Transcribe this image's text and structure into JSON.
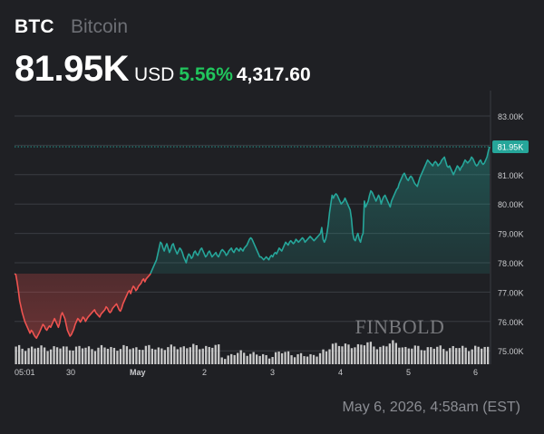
{
  "header": {
    "symbol": "BTC",
    "name": "Bitcoin",
    "price": "81.95K",
    "currency": "USD",
    "change_pct": "5.56%",
    "change_abs": "4,317.60"
  },
  "footer": {
    "timestamp": "May 6, 2026, 4:58am (EST)"
  },
  "watermark": "FINBOLD",
  "colors": {
    "background": "#1f2024",
    "up": "#26a69a",
    "down": "#ef5350",
    "positive_text": "#21c55d",
    "grid": "#3a3c42",
    "axis_text": "#c9cacd",
    "volume": "#d9d9d9"
  },
  "chart_data": {
    "type": "line",
    "x_tick_labels": [
      "05:01",
      "30",
      "May",
      "2",
      "3",
      "4",
      "5",
      "6"
    ],
    "y_tick_labels": [
      "83.00K",
      "82.00K",
      "81.00K",
      "80.00K",
      "79.00K",
      "78.00K",
      "77.00K",
      "76.00K",
      "75.00K"
    ],
    "y_ticks": [
      83000,
      82000,
      81000,
      80000,
      79000,
      78000,
      77000,
      76000,
      75000
    ],
    "ylim": [
      74700,
      83500
    ],
    "reference_level": 77630,
    "last_value": 81950,
    "last_label": "81.95K",
    "grid": true,
    "series": [
      {
        "values": [
          77630,
          77600,
          77350,
          77050,
          76700,
          76500,
          76300,
          76150,
          76000,
          75900,
          75800,
          75700,
          75600,
          75700,
          75650,
          75550,
          75480,
          75430,
          75520,
          75600,
          75700,
          75800,
          75900,
          75850,
          75750,
          75700,
          75780,
          75850,
          75800,
          75900,
          76000,
          76100,
          76000,
          75900,
          75800,
          75950,
          76200,
          76300,
          76200,
          76100,
          75900,
          75700,
          75600,
          75500,
          75550,
          75650,
          75750,
          75900,
          76000,
          76100,
          76050,
          75980,
          76050,
          76150,
          76100,
          76000,
          76080,
          76150,
          76200,
          76250,
          76300,
          76350,
          76400,
          76300,
          76250,
          76200,
          76150,
          76250,
          76300,
          76350,
          76400,
          76500,
          76450,
          76350,
          76300,
          76350,
          76450,
          76500,
          76550,
          76600,
          76500,
          76400,
          76350,
          76450,
          76600,
          76700,
          76800,
          76900,
          77000,
          77050,
          76950,
          77100,
          77200,
          77150,
          77050,
          77100,
          77200,
          77250,
          77300,
          77400,
          77450,
          77350,
          77450,
          77500,
          77550,
          77600,
          77700,
          77800,
          77900,
          78000,
          78100,
          78300,
          78500,
          78700,
          78650,
          78500,
          78400,
          78550,
          78650,
          78500,
          78350,
          78450,
          78600,
          78650,
          78500,
          78400,
          78300,
          78400,
          78500,
          78450,
          78350,
          78200,
          78100,
          78000,
          78200,
          78300,
          78250,
          78150,
          78200,
          78350,
          78400,
          78300,
          78250,
          78350,
          78450,
          78500,
          78400,
          78300,
          78200,
          78250,
          78350,
          78400,
          78300,
          78200,
          78250,
          78300,
          78350,
          78250,
          78200,
          78300,
          78400,
          78450,
          78400,
          78350,
          78250,
          78300,
          78400,
          78450,
          78500,
          78400,
          78350,
          78450,
          78500,
          78450,
          78400,
          78500,
          78450,
          78400,
          78500,
          78550,
          78600,
          78700,
          78800,
          78850,
          78800,
          78700,
          78600,
          78500,
          78400,
          78300,
          78200,
          78200,
          78150,
          78100,
          78150,
          78200,
          78150,
          78100,
          78200,
          78250,
          78200,
          78300,
          78350,
          78300,
          78400,
          78500,
          78450,
          78400,
          78500,
          78600,
          78700,
          78650,
          78600,
          78700,
          78750,
          78700,
          78650,
          78700,
          78800,
          78750,
          78700,
          78750,
          78800,
          78850,
          78800,
          78700,
          78750,
          78800,
          78850,
          78900,
          78850,
          78800,
          78750,
          78800,
          78850,
          78900,
          78950,
          79000,
          79200,
          78800,
          78700,
          78800,
          79000,
          79300,
          79700,
          80000,
          80300,
          80200,
          80300,
          80350,
          80300,
          80200,
          80100,
          80000,
          80050,
          80100,
          80200,
          80100,
          80000,
          79900,
          79800,
          79500,
          79000,
          78800,
          78750,
          78900,
          79000,
          78800,
          78700,
          78900,
          79000,
          80100,
          79900,
          80000,
          80100,
          80300,
          80450,
          80400,
          80300,
          80200,
          80100,
          80200,
          80300,
          80200,
          80000,
          80150,
          80250,
          80300,
          80200,
          80100,
          80000,
          79900,
          80100,
          80200,
          80300,
          80400,
          80500,
          80550,
          80700,
          80800,
          80900,
          81000,
          81050,
          80950,
          80850,
          80800,
          80900,
          80950,
          80900,
          80800,
          80700,
          80650,
          80600,
          80750,
          80900,
          81000,
          81100,
          81200,
          81300,
          81400,
          81500,
          81450,
          81400,
          81350,
          81300,
          81400,
          81450,
          81400,
          81300,
          81350,
          81400,
          81500,
          81550,
          81600,
          81450,
          81300,
          81250,
          81300,
          81200,
          81100,
          81000,
          81100,
          81200,
          81300,
          81250,
          81150,
          81250,
          81300,
          81400,
          81500,
          81450,
          81400,
          81450,
          81500,
          81600,
          81550,
          81450,
          81350,
          81300,
          81350,
          81450,
          81500,
          81400,
          81350,
          81400,
          81500,
          81600,
          81800,
          81950
        ]
      }
    ],
    "volume_shown": true
  }
}
